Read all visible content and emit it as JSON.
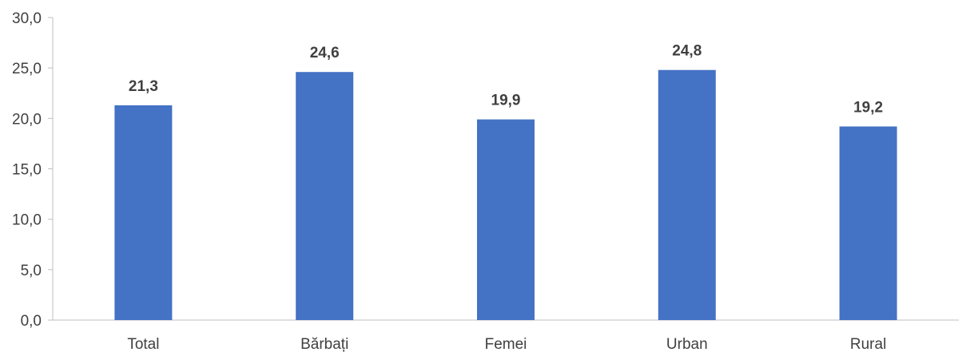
{
  "chart_data": {
    "type": "bar",
    "title": "",
    "xlabel": "",
    "ylabel": "",
    "categories": [
      "Total",
      "Bărbați",
      "Femei",
      "Urban",
      "Rural"
    ],
    "values": [
      21.3,
      24.6,
      19.9,
      24.8,
      19.2
    ],
    "value_labels": [
      "21,3",
      "24,6",
      "19,9",
      "24,8",
      "19,2"
    ],
    "ylim": [
      0,
      30
    ],
    "yticks": [
      0,
      5,
      10,
      15,
      20,
      25,
      30
    ],
    "ytick_labels": [
      "0,0",
      "5,0",
      "10,0",
      "15,0",
      "20,0",
      "25,0",
      "30,0"
    ],
    "grid": false,
    "legend": "none",
    "bar_color": "#4472C4",
    "axis_color": "#BFBFBF",
    "text_color": "#404040"
  }
}
